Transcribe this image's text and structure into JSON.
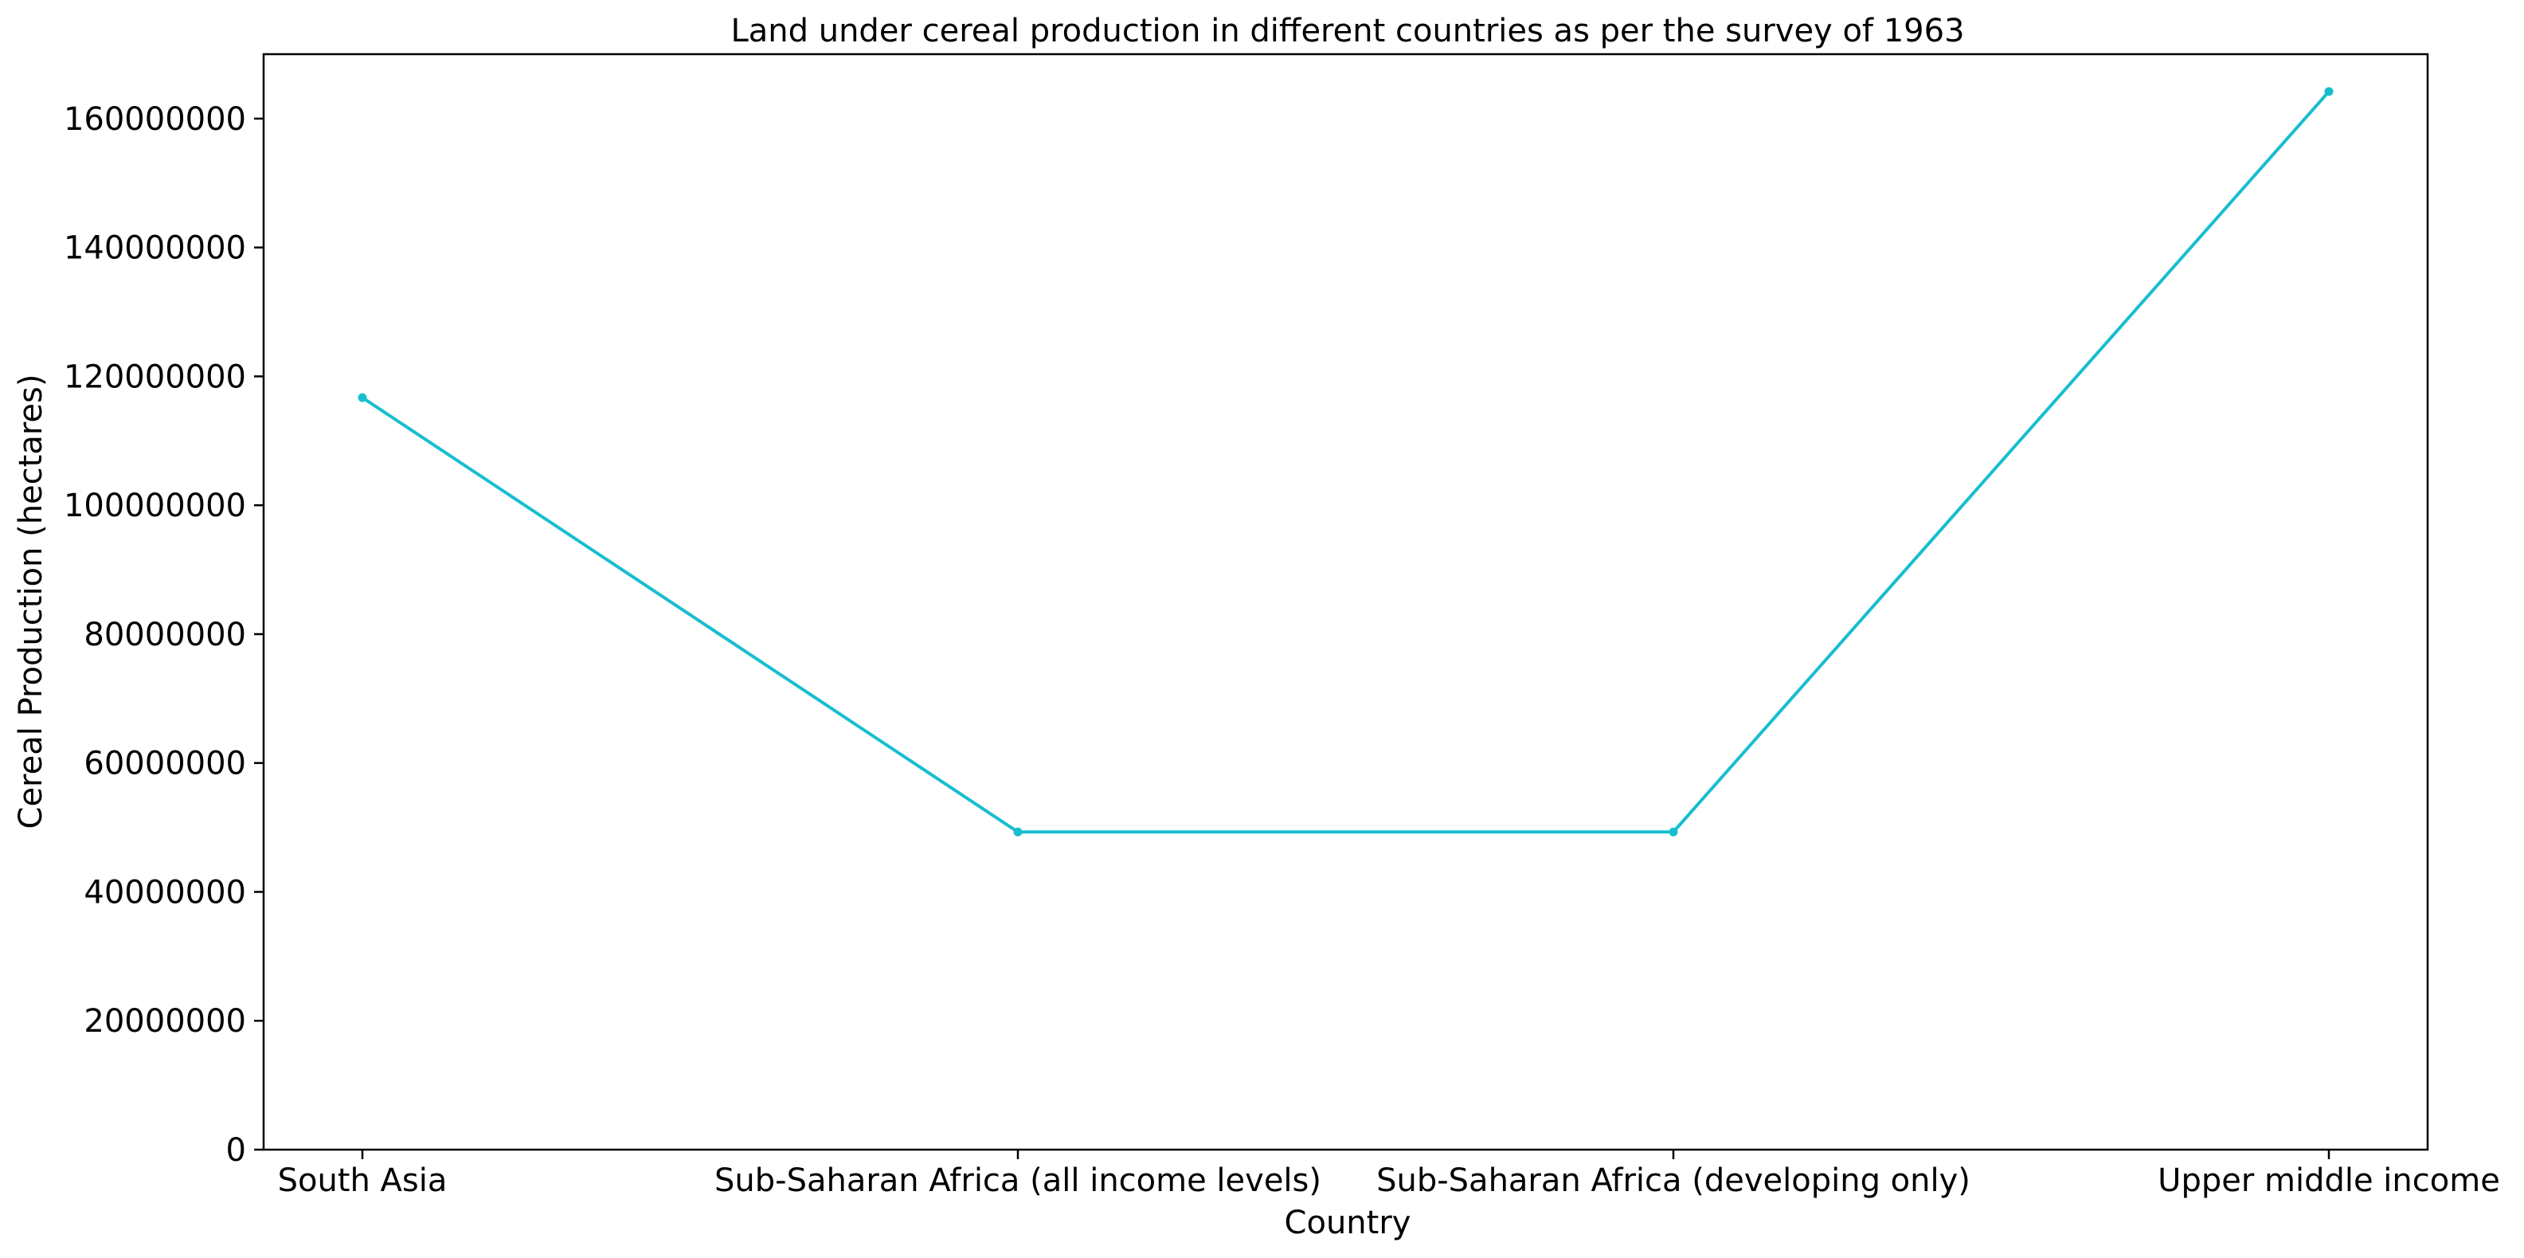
{
  "chart_data": {
    "type": "line",
    "title": "Land under cereal  production in different countries as per the survey of 1963",
    "xlabel": "Country",
    "ylabel": "Cereal Production (hectares)",
    "categories": [
      "South Asia",
      "Sub-Saharan Africa (all income levels)",
      "Sub-Saharan Africa (developing only)",
      "Upper middle income"
    ],
    "series": [
      {
        "values": [
          116700000,
          49300000,
          49300000,
          164200000
        ],
        "color": "#17becf"
      }
    ],
    "ylim": [
      0,
      170000000
    ],
    "yticks": [
      0,
      20000000,
      40000000,
      60000000,
      80000000,
      100000000,
      120000000,
      140000000,
      160000000
    ],
    "ytick_labels": [
      "0",
      "20000000",
      "40000000",
      "60000000",
      "80000000",
      "100000000",
      "120000000",
      "140000000",
      "160000000"
    ],
    "grid": false,
    "legend": false,
    "marker": "circle"
  }
}
